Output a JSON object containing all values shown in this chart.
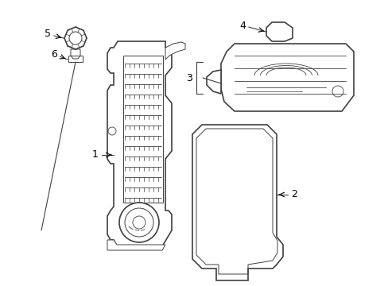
{
  "background_color": "#ffffff",
  "line_color": "#404040",
  "label_color": "#000000",
  "figsize": [
    4.89,
    3.6
  ],
  "dpi": 100
}
